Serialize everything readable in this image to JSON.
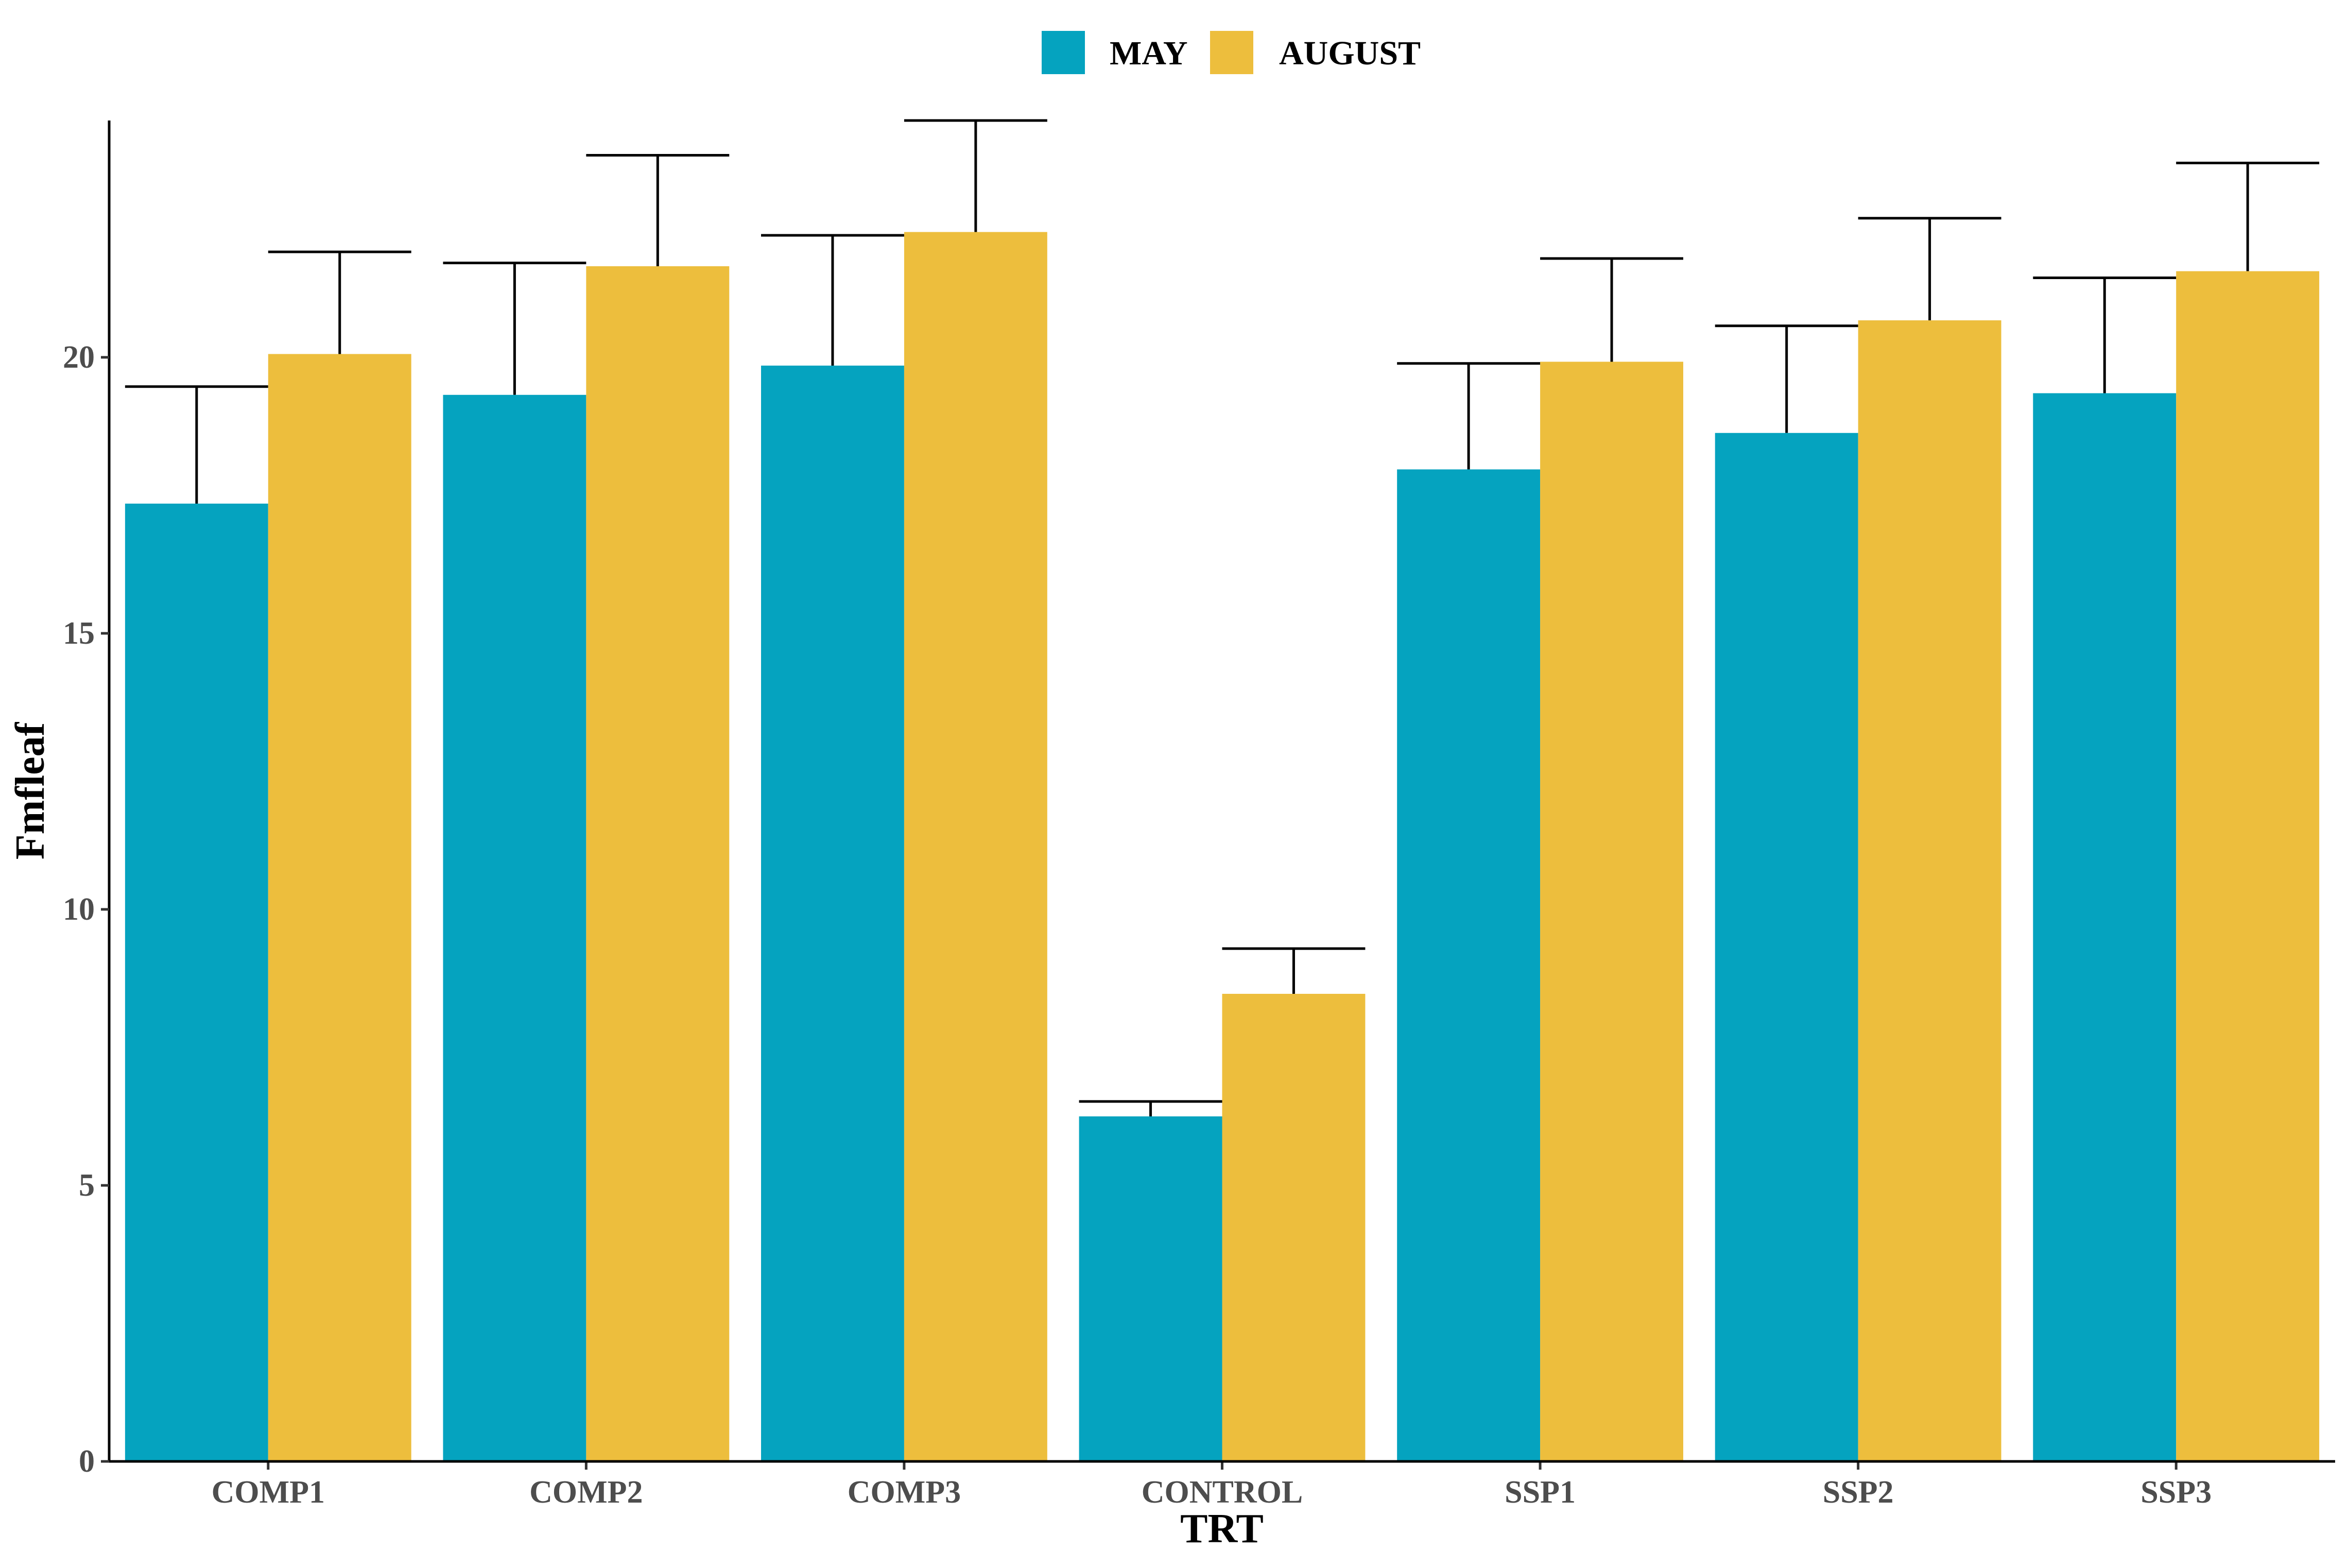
{
  "chart_data": {
    "type": "bar",
    "xlabel": "TRT",
    "ylabel": "Fmfleaf",
    "categories": [
      "COMP1",
      "COMP2",
      "COMP3",
      "CONTROL",
      "SSP1",
      "SSP2",
      "SSP3"
    ],
    "series": [
      {
        "name": "MAY",
        "color": "#05A3BF",
        "values": [
          17.35,
          19.32,
          19.85,
          6.25,
          17.97,
          18.63,
          19.35
        ],
        "error_upper": [
          19.47,
          21.71,
          22.21,
          6.52,
          19.89,
          20.57,
          21.44
        ]
      },
      {
        "name": "AUGUST",
        "color": "#EDBE3D",
        "values": [
          20.06,
          21.65,
          22.27,
          8.47,
          19.92,
          20.67,
          21.56
        ],
        "error_upper": [
          21.91,
          23.66,
          24.29,
          9.29,
          21.79,
          22.52,
          23.52
        ]
      }
    ],
    "ylim": [
      0,
      24.29
    ],
    "yticks": [
      0,
      5,
      10,
      15,
      20
    ],
    "legend_position": "top",
    "grid": false
  }
}
